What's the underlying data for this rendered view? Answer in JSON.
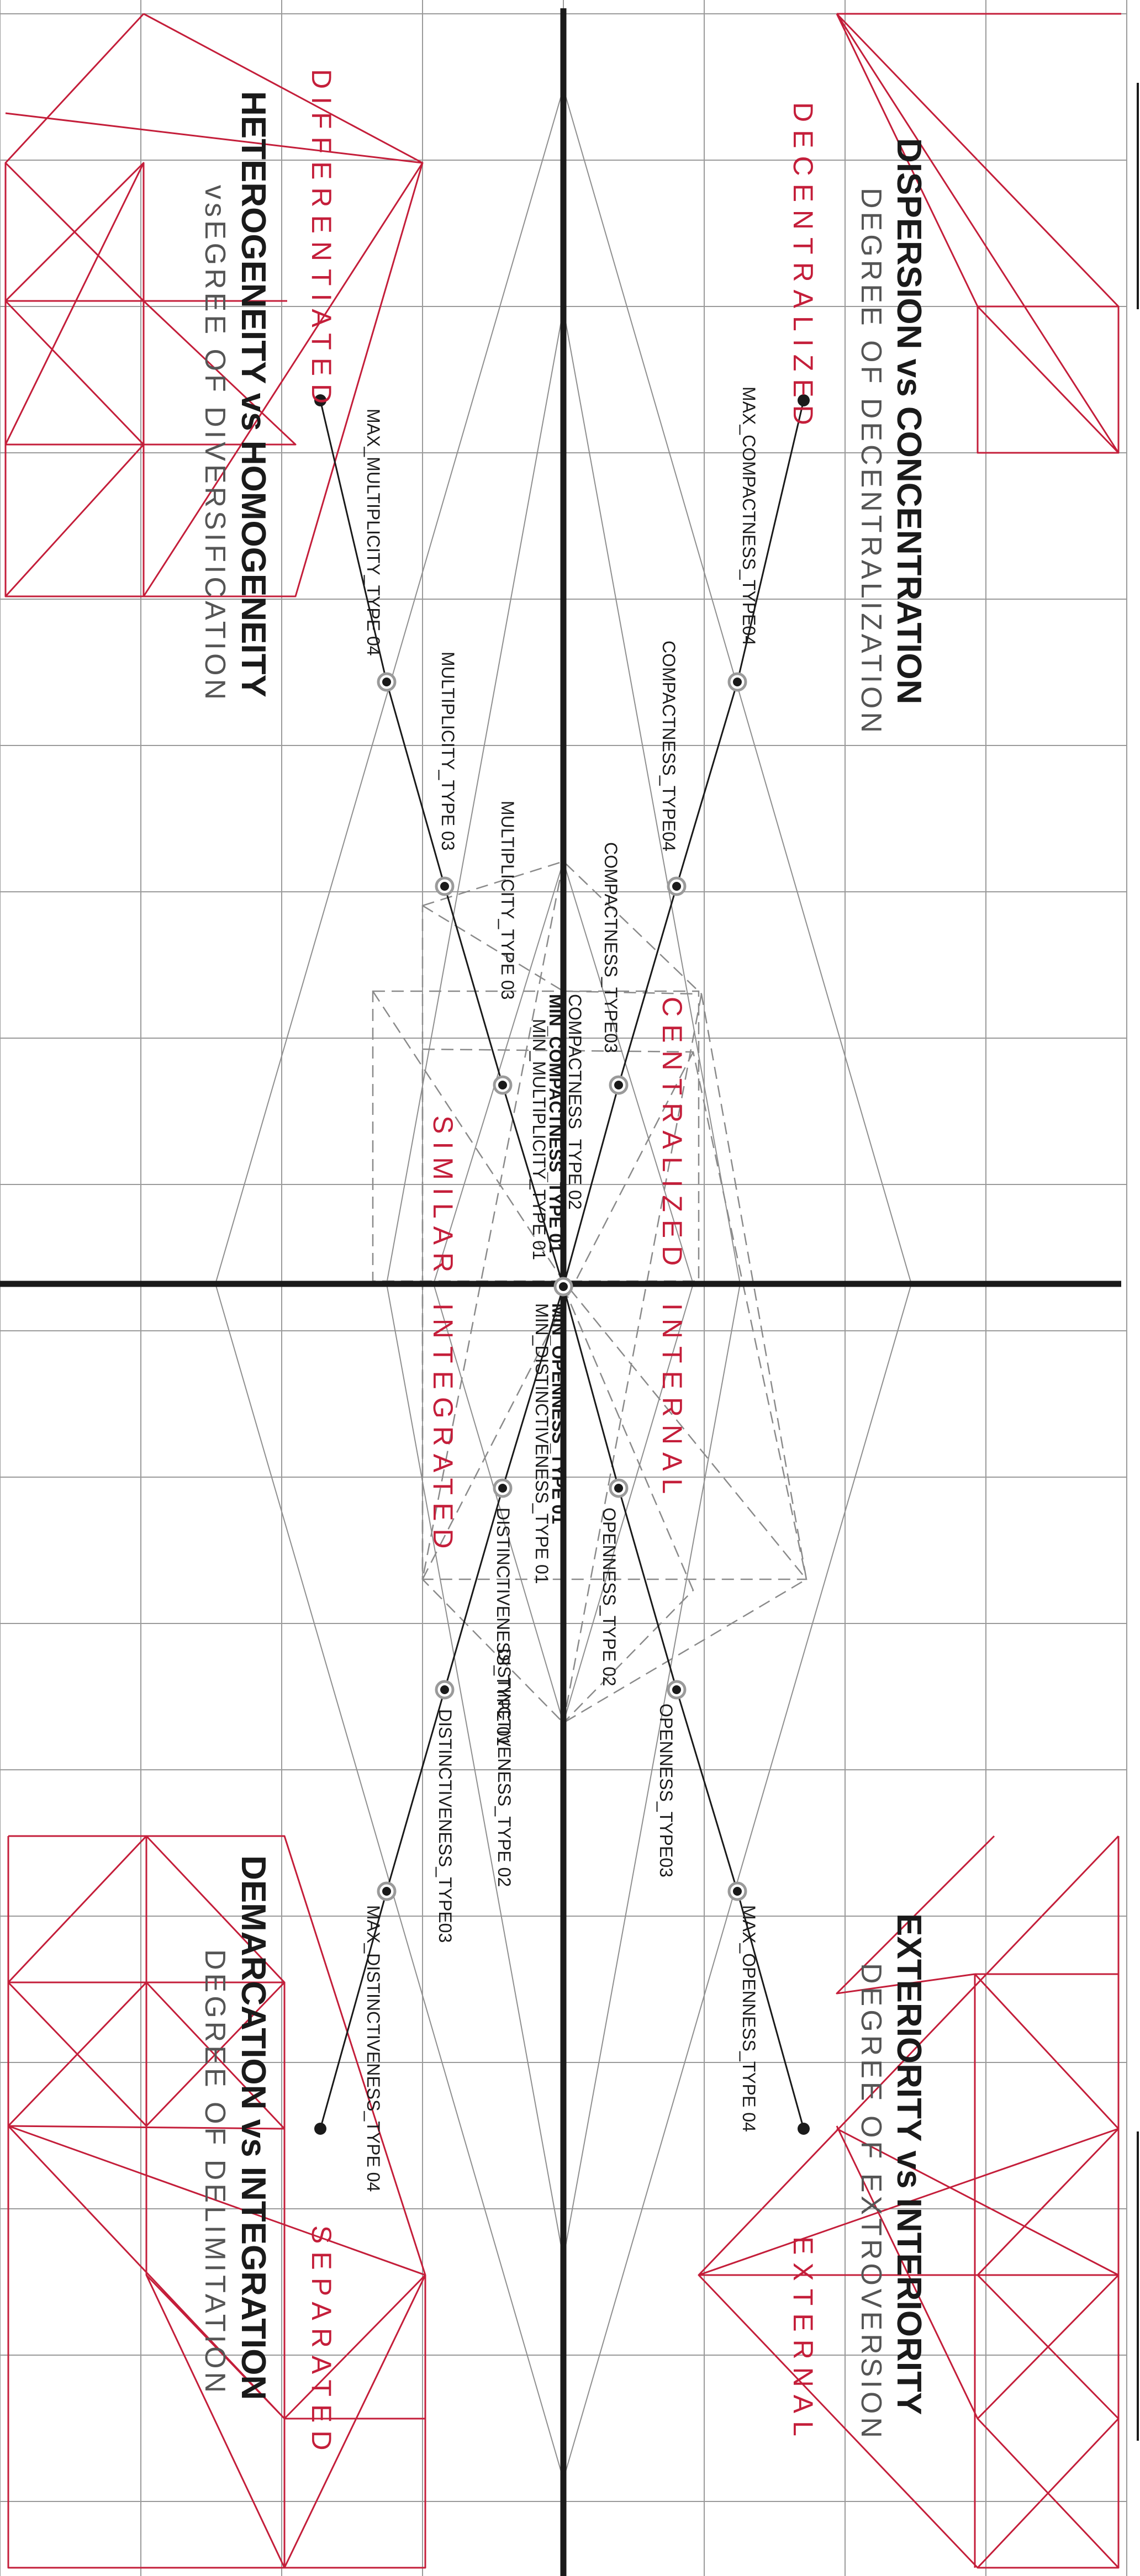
{
  "colors": {
    "accent": "#c41e3a",
    "ink": "#1a1a1a",
    "grid": "#9a9a9a",
    "dash": "#8a8a8a"
  },
  "quadrants": {
    "top_right": {
      "title": "DISPERSION vs CONCENTRATION",
      "subtitle": "DEGREE OF DECENTRALIZATION",
      "outer_word": "DECENTRALIZED",
      "inner_word": "CENTRALIZED"
    },
    "top_left": {
      "title": "HETEROGENEITY vs HOMOGENEITY",
      "subtitle": "vsEGREE OF DIVERSIFICATION",
      "outer_word": "DIFFERENTIATED",
      "inner_word": "SIMILAR"
    },
    "bottom_right": {
      "title": "EXTERIORITY vs INTERIORITY",
      "subtitle": "DEGREE OF EXTROVERSION",
      "outer_word": "EXTERNAL",
      "inner_word": "INTERNAL"
    },
    "bottom_left": {
      "title": "DEMARCATION vs INTEGRATION",
      "subtitle": "DEGREE OF DELIMITATION",
      "outer_word": "SEPARATED",
      "inner_word": "INTEGRATED"
    }
  },
  "axes": {
    "compactness": {
      "type04": "COMPACTNESS_TYPE04",
      "type03": "COMPACTNESS_TYPE03",
      "type02": "COMPACTNESS_TYPE 02",
      "type01": "MIN_COMPACTNESS_TYPE 01",
      "max": "MAX_COMPACTNESS_TYPE04"
    },
    "multiplicity": {
      "type04": "MAX_MULTIPLICITY_TYPE 04",
      "type03": "MULTIPLICITY_TYPE 03",
      "type02": "MULTIPLICITY_TYPE 03",
      "type01": "MIN_MULTIPLICITY_TYPE 01"
    },
    "openness": {
      "type01": "MIN_OPENNESS_TYPE 01",
      "type02": "OPENNESS_TYPE 02",
      "type03": "OPENNESS_TYPE03",
      "max": "MAX_OPENNESS_TYPE 04"
    },
    "distinctiveness": {
      "type01": "MIN_DISTINCTIVENESS_TYPE 01",
      "type01b": "DISTINCTIVENESS_TYPE 01",
      "type02": "DISTINCTIVENESS_TYPE 02",
      "type03": "DISTINCTIVENESS_TYPE03",
      "max": "MAX_DISTINCTIVENESS_TYPE 04"
    }
  }
}
